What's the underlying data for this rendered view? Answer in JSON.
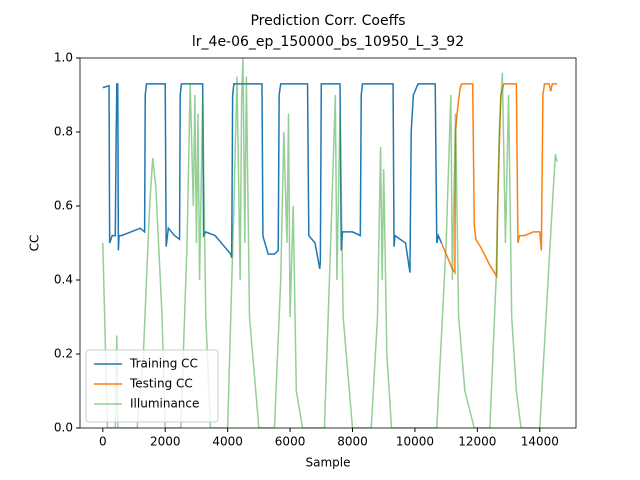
{
  "chart_data": {
    "type": "line",
    "title": "Prediction Corr. Coeffs",
    "subtitle": "lr_4e-06_ep_150000_bs_10950_L_3_92",
    "x_label": "Sample",
    "y_label": "CC",
    "xlim": [
      -730,
      15160
    ],
    "ylim": [
      0,
      1
    ],
    "xticks": [
      0,
      2000,
      4000,
      6000,
      8000,
      10000,
      12000,
      14000
    ],
    "yticks": [
      {
        "value": 0,
        "label": "0.0"
      },
      {
        "value": 0.2,
        "label": "0.2"
      },
      {
        "value": 0.4,
        "label": "0.4"
      },
      {
        "value": 0.6,
        "label": "0.6"
      },
      {
        "value": 0.8,
        "label": "0.8"
      },
      {
        "value": 1,
        "label": "1.0"
      }
    ],
    "legend": "lower left",
    "series": [
      {
        "name": "Training CC",
        "color": "#1f77b4",
        "alpha": 1,
        "x": [
          0,
          200,
          220,
          300,
          400,
          430,
          450,
          480,
          500,
          520,
          600,
          900,
          1200,
          1340,
          1360,
          1400,
          1900,
          2000,
          2030,
          2100,
          2300,
          2460,
          2480,
          2520,
          3150,
          3200,
          3230,
          3300,
          3600,
          3900,
          4100,
          4130,
          4160,
          4200,
          5100,
          5130,
          5160,
          5300,
          5500,
          5620,
          5650,
          5700,
          6500,
          6560,
          6600,
          6800,
          6950,
          6970,
          7000,
          7600,
          7640,
          7680,
          8000,
          8250,
          8280,
          8320,
          9300,
          9330,
          9360,
          9700,
          9840,
          9880,
          9950,
          10100,
          10650,
          10700,
          10750,
          10850
        ],
        "values": [
          0.92,
          0.925,
          0.5,
          0.52,
          0.52,
          0.8,
          0.93,
          0.93,
          0.48,
          0.52,
          0.52,
          0.53,
          0.54,
          0.53,
          0.9,
          0.93,
          0.93,
          0.93,
          0.49,
          0.54,
          0.52,
          0.51,
          0.9,
          0.93,
          0.93,
          0.93,
          0.52,
          0.53,
          0.52,
          0.49,
          0.47,
          0.46,
          0.9,
          0.93,
          0.93,
          0.52,
          0.51,
          0.47,
          0.47,
          0.48,
          0.9,
          0.93,
          0.93,
          0.93,
          0.52,
          0.5,
          0.43,
          0.45,
          0.93,
          0.93,
          0.48,
          0.53,
          0.53,
          0.52,
          0.9,
          0.93,
          0.93,
          0.49,
          0.52,
          0.5,
          0.42,
          0.8,
          0.9,
          0.93,
          0.93,
          0.5,
          0.52,
          0.5
        ]
      },
      {
        "name": "Testing CC",
        "color": "#ff7f0e",
        "alpha": 1,
        "x": [
          10850,
          11000,
          11200,
          11280,
          11300,
          11350,
          11450,
          11500,
          11850,
          11900,
          11950,
          12100,
          12400,
          12620,
          12650,
          12750,
          12850,
          13250,
          13300,
          13350,
          13500,
          13800,
          14000,
          14050,
          14100,
          14150,
          14300,
          14350,
          14400,
          14550
        ],
        "values": [
          0.5,
          0.47,
          0.43,
          0.42,
          0.8,
          0.85,
          0.92,
          0.93,
          0.93,
          0.55,
          0.51,
          0.49,
          0.44,
          0.41,
          0.6,
          0.9,
          0.93,
          0.93,
          0.5,
          0.52,
          0.52,
          0.53,
          0.53,
          0.48,
          0.9,
          0.93,
          0.93,
          0.91,
          0.93,
          0.93
        ]
      },
      {
        "name": "Illuminance",
        "color": "#2ca02c",
        "alpha": 0.5,
        "x": [
          0,
          150,
          200,
          400,
          450,
          480,
          1100,
          1300,
          1500,
          1600,
          1700,
          1900,
          2000,
          2500,
          2700,
          2800,
          2900,
          2950,
          3000,
          3050,
          3100,
          3200,
          3300,
          3450,
          4000,
          4200,
          4300,
          4400,
          4450,
          4490,
          4550,
          4600,
          4700,
          4900,
          5000,
          5500,
          5700,
          5800,
          5900,
          5950,
          6000,
          6100,
          6200,
          6400,
          6500,
          7100,
          7300,
          7450,
          7500,
          7600,
          7700,
          7800,
          8000,
          8600,
          8800,
          8900,
          8950,
          9000,
          9100,
          9250,
          10300,
          10700,
          11000,
          11150,
          11200,
          11300,
          11400,
          11600,
          11900,
          12200,
          12400,
          12600,
          12700,
          12800,
          12900,
          13000,
          13100,
          13250,
          13400,
          13700,
          14000,
          14200,
          14400,
          14500,
          14550
        ],
        "values": [
          0.5,
          0,
          0,
          0,
          0.25,
          0,
          0,
          0.2,
          0.6,
          0.73,
          0.65,
          0.3,
          0,
          0,
          0.5,
          0.93,
          0.6,
          0.9,
          0.5,
          0.85,
          0.4,
          0.9,
          0.3,
          0,
          0,
          0.6,
          0.95,
          0.4,
          0.9,
          1.0,
          0.5,
          0.95,
          0.3,
          0.1,
          0,
          0,
          0.4,
          0.8,
          0.5,
          0.85,
          0.3,
          0.6,
          0.1,
          0,
          0,
          0,
          0.5,
          0.9,
          0.4,
          0.85,
          0.3,
          0.2,
          0,
          0,
          0.3,
          0.76,
          0.4,
          0.7,
          0.2,
          0,
          0,
          0,
          0.5,
          0.9,
          0.4,
          0.85,
          0.3,
          0.1,
          0,
          0,
          0,
          0.4,
          0.8,
          0.96,
          0.5,
          0.9,
          0.3,
          0.1,
          0,
          0,
          0,
          0.3,
          0.6,
          0.74,
          0.72
        ]
      }
    ]
  }
}
